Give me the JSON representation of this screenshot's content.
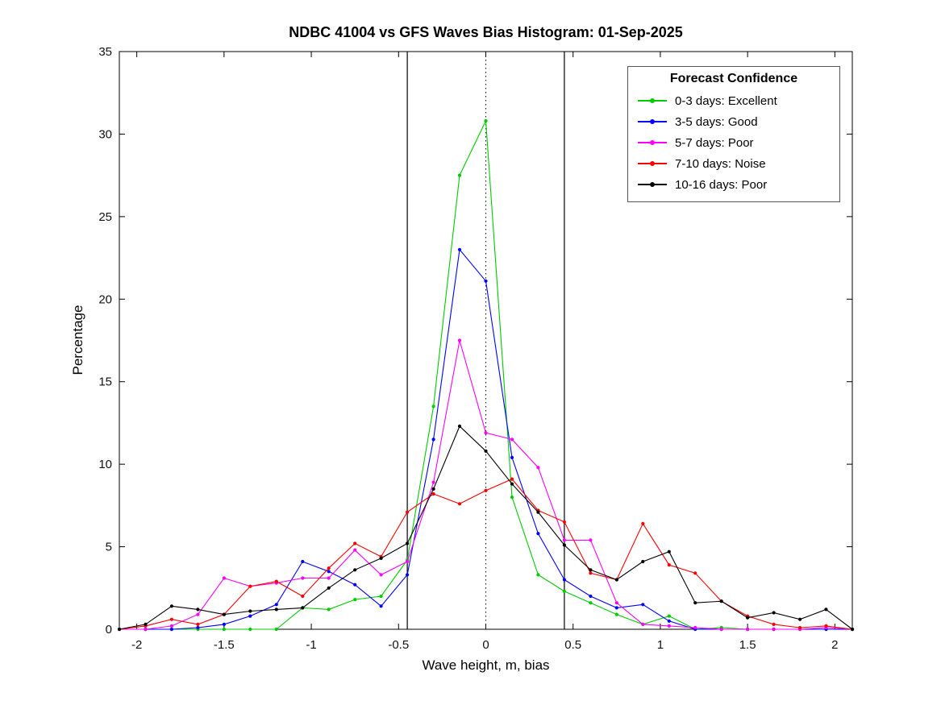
{
  "chart_data": {
    "type": "line",
    "title": "NDBC 41004 vs GFS Waves Bias Histogram: 01-Sep-2025",
    "xlabel": "Wave height, m, bias",
    "ylabel": "Percentage",
    "xlim": [
      -2.1,
      2.1
    ],
    "ylim": [
      0,
      35
    ],
    "xticks": [
      "-2",
      "-1.5",
      "-1",
      "-0.5",
      "0",
      "0.5",
      "1",
      "1.5",
      "2"
    ],
    "yticks": [
      "0",
      "5",
      "10",
      "15",
      "20",
      "25",
      "30",
      "35"
    ],
    "grid": false,
    "legend_title": "Forecast Confidence",
    "legend_position": "top-right",
    "reference_lines": {
      "solid_x": [
        -0.45,
        0.45
      ],
      "dotted_x": [
        0
      ]
    },
    "x": [
      -2.1,
      -1.95,
      -1.8,
      -1.65,
      -1.5,
      -1.35,
      -1.2,
      -1.05,
      -0.9,
      -0.75,
      -0.6,
      -0.45,
      -0.3,
      -0.15,
      0,
      0.15,
      0.3,
      0.45,
      0.6,
      0.75,
      0.9,
      1.05,
      1.2,
      1.35,
      1.5,
      1.65,
      1.8,
      1.95,
      2.1
    ],
    "series": [
      {
        "label": "0-3 days: Excellent",
        "color": "#00cc00",
        "values": [
          0,
          0,
          0,
          0,
          0,
          0,
          0,
          1.3,
          1.2,
          1.8,
          2.0,
          4.2,
          13.5,
          27.5,
          30.8,
          8.0,
          3.3,
          2.3,
          1.6,
          0.9,
          0.3,
          0.8,
          0,
          0.1,
          0,
          0,
          0,
          0,
          0
        ]
      },
      {
        "label": "3-5 days: Good",
        "color": "#0000ff",
        "values": [
          0,
          0,
          0,
          0.1,
          0.3,
          0.8,
          1.5,
          4.1,
          3.5,
          2.7,
          1.4,
          3.3,
          11.5,
          23.0,
          21.1,
          10.4,
          5.8,
          3.0,
          2.0,
          1.3,
          1.5,
          0.5,
          0,
          0,
          0,
          0,
          0,
          0,
          0
        ]
      },
      {
        "label": "5-7 days: Poor",
        "color": "#ff00ff",
        "values": [
          0,
          0,
          0.2,
          0.9,
          3.1,
          2.6,
          2.8,
          3.1,
          3.1,
          4.8,
          3.3,
          4.1,
          8.9,
          17.5,
          11.9,
          11.5,
          9.8,
          5.4,
          5.4,
          1.6,
          0.3,
          0.2,
          0.1,
          0,
          0,
          0,
          0,
          0.1,
          0
        ]
      },
      {
        "label": "7-10 days: Noise",
        "color": "#ff0000",
        "values": [
          0,
          0.2,
          0.6,
          0.3,
          0.9,
          2.6,
          2.9,
          2.0,
          3.7,
          5.2,
          4.4,
          7.1,
          8.2,
          7.6,
          8.4,
          9.1,
          7.2,
          6.5,
          3.4,
          3.0,
          6.4,
          3.9,
          3.4,
          1.7,
          0.8,
          0.3,
          0.1,
          0.2,
          0
        ]
      },
      {
        "label": "10-16 days: Poor",
        "color": "#000000",
        "values": [
          0,
          0.3,
          1.4,
          1.2,
          0.9,
          1.1,
          1.2,
          1.3,
          2.5,
          3.6,
          4.3,
          5.2,
          8.5,
          12.3,
          10.8,
          8.8,
          7.1,
          5.1,
          3.6,
          3.0,
          4.1,
          4.7,
          1.6,
          1.7,
          0.7,
          1.0,
          0.6,
          1.2,
          0
        ]
      }
    ]
  }
}
